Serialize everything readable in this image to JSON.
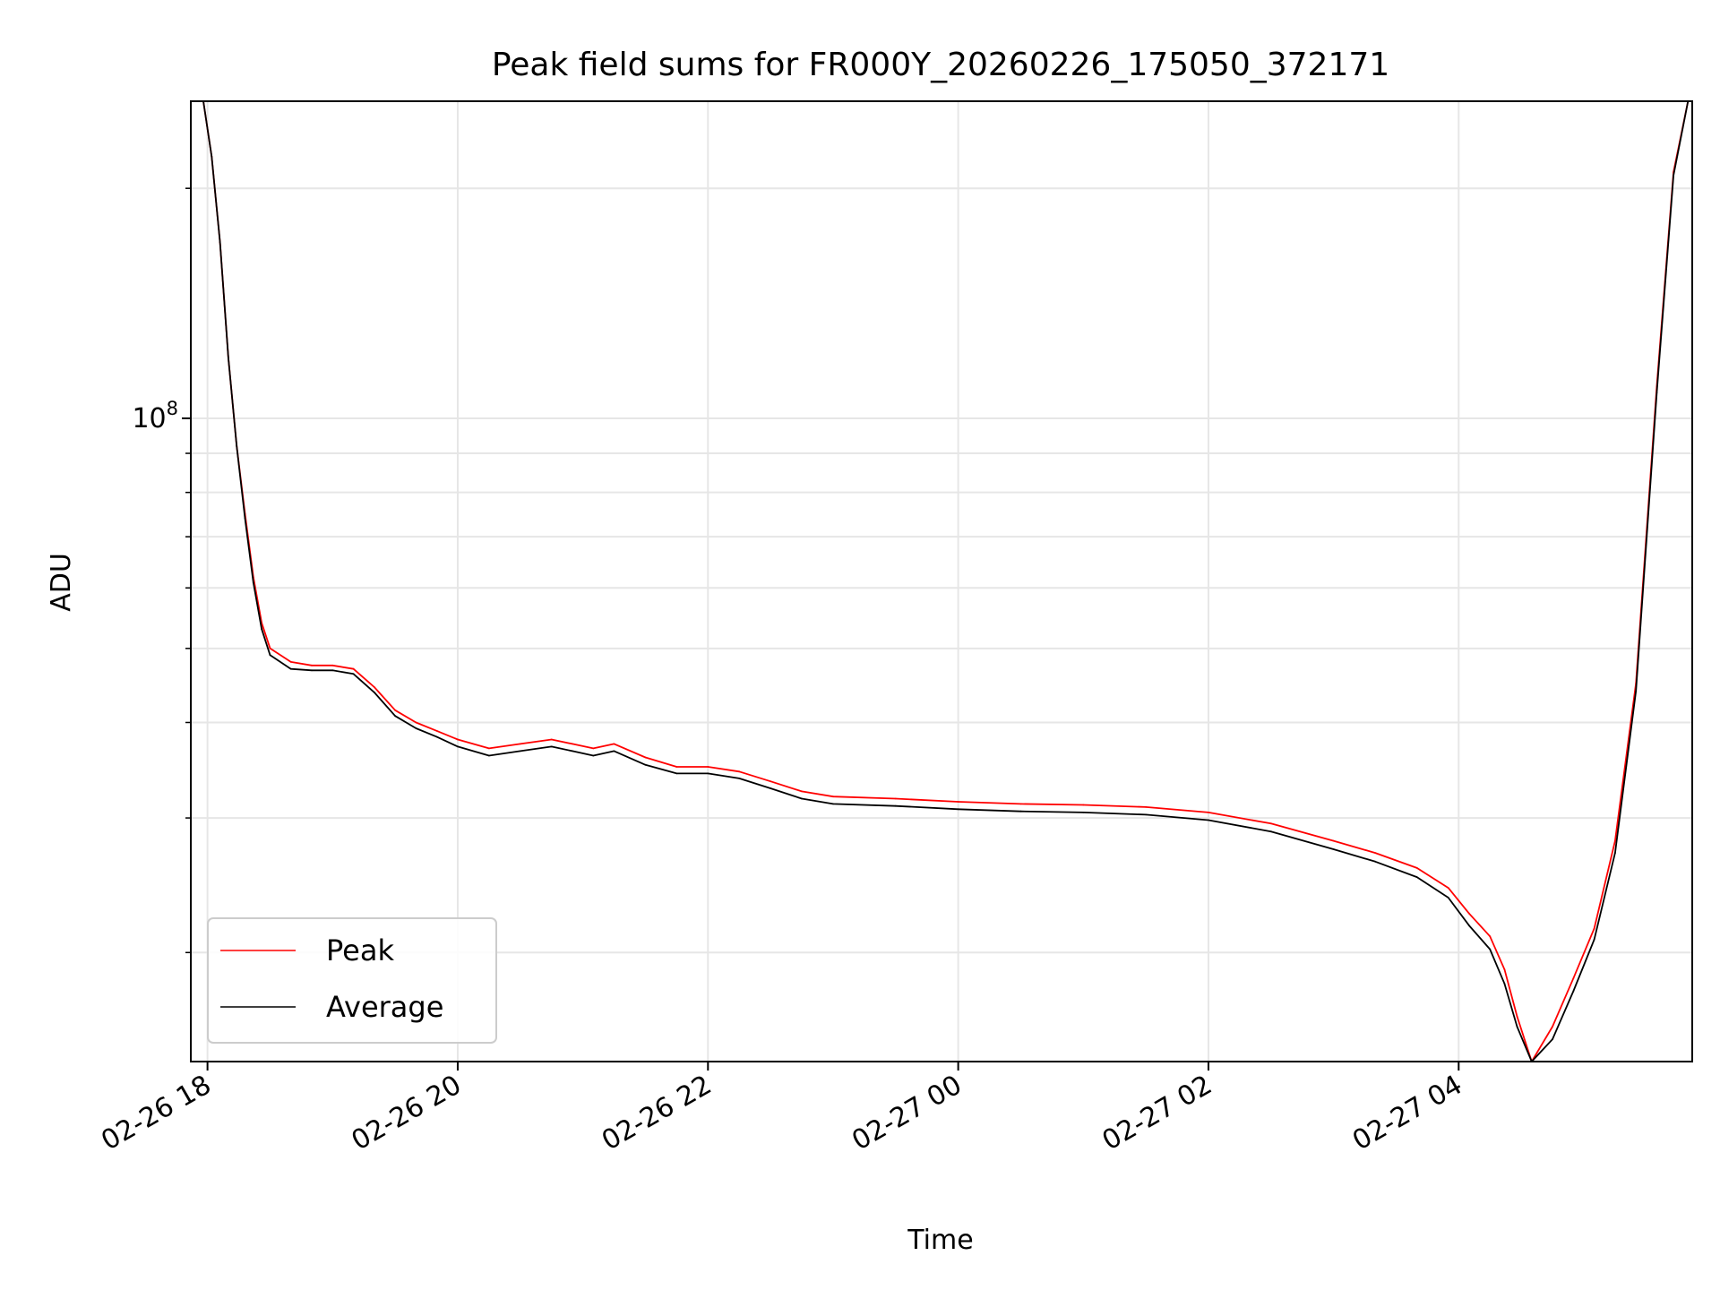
{
  "chart_data": {
    "type": "line",
    "title": "Peak field sums for FR000Y_20260226_175050_372171",
    "xlabel": "Time",
    "ylabel": "ADU",
    "x_ticks": [
      "02-26 18",
      "02-26 20",
      "02-26 22",
      "02-27 00",
      "02-27 02",
      "02-27 04"
    ],
    "y_tick_label": {
      "base": "10",
      "exponent": "8"
    },
    "yscale": "log",
    "ylim": [
      14400000,
      260000000
    ],
    "xlim": [
      "2026-02-26 17:52",
      "2026-02-27 05:52"
    ],
    "grid": true,
    "legend": {
      "position": "lower-left",
      "entries": [
        "Peak",
        "Average"
      ]
    },
    "colors": {
      "Peak": "#ff0000",
      "Average": "#000000"
    },
    "series": [
      {
        "name": "Peak",
        "x": [
          "2026-02-26 17:58",
          "2026-02-26 18:02",
          "2026-02-26 18:06",
          "2026-02-26 18:10",
          "2026-02-26 18:14",
          "2026-02-26 18:18",
          "2026-02-26 18:22",
          "2026-02-26 18:26",
          "2026-02-26 18:30",
          "2026-02-26 18:40",
          "2026-02-26 18:50",
          "2026-02-26 19:00",
          "2026-02-26 19:10",
          "2026-02-26 19:20",
          "2026-02-26 19:30",
          "2026-02-26 19:40",
          "2026-02-26 19:50",
          "2026-02-26 20:00",
          "2026-02-26 20:15",
          "2026-02-26 20:30",
          "2026-02-26 20:45",
          "2026-02-26 20:55",
          "2026-02-26 21:05",
          "2026-02-26 21:15",
          "2026-02-26 21:30",
          "2026-02-26 21:45",
          "2026-02-26 22:00",
          "2026-02-26 22:15",
          "2026-02-26 22:30",
          "2026-02-26 22:45",
          "2026-02-26 23:00",
          "2026-02-26 23:30",
          "2026-02-27 00:00",
          "2026-02-27 00:30",
          "2026-02-27 01:00",
          "2026-02-27 01:30",
          "2026-02-27 02:00",
          "2026-02-27 02:30",
          "2026-02-27 03:00",
          "2026-02-27 03:20",
          "2026-02-27 03:40",
          "2026-02-27 03:55",
          "2026-02-27 04:05",
          "2026-02-27 04:15",
          "2026-02-27 04:22",
          "2026-02-27 04:28",
          "2026-02-27 04:35",
          "2026-02-27 04:45",
          "2026-02-27 04:55",
          "2026-02-27 05:05",
          "2026-02-27 05:15",
          "2026-02-27 05:25",
          "2026-02-27 05:35",
          "2026-02-27 05:43",
          "2026-02-27 05:50"
        ],
        "y": [
          260000000,
          220000000,
          170000000,
          120000000,
          92000000,
          75000000,
          62000000,
          54000000,
          50000000,
          48000000,
          47500000,
          47500000,
          47000000,
          44500000,
          41500000,
          40000000,
          39000000,
          38000000,
          37000000,
          37500000,
          38000000,
          37500000,
          37000000,
          37500000,
          36000000,
          35000000,
          35000000,
          34500000,
          33500000,
          32500000,
          32000000,
          31800000,
          31500000,
          31300000,
          31200000,
          31000000,
          30500000,
          29500000,
          28000000,
          27000000,
          25800000,
          24300000,
          22500000,
          21000000,
          19000000,
          16500000,
          14400000,
          16000000,
          18500000,
          21500000,
          28000000,
          45000000,
          110000000,
          210000000,
          260000000
        ]
      },
      {
        "name": "Average",
        "x": [
          "2026-02-26 17:58",
          "2026-02-26 18:02",
          "2026-02-26 18:06",
          "2026-02-26 18:10",
          "2026-02-26 18:14",
          "2026-02-26 18:18",
          "2026-02-26 18:22",
          "2026-02-26 18:26",
          "2026-02-26 18:30",
          "2026-02-26 18:40",
          "2026-02-26 18:50",
          "2026-02-26 19:00",
          "2026-02-26 19:10",
          "2026-02-26 19:20",
          "2026-02-26 19:30",
          "2026-02-26 19:40",
          "2026-02-26 19:50",
          "2026-02-26 20:00",
          "2026-02-26 20:15",
          "2026-02-26 20:30",
          "2026-02-26 20:45",
          "2026-02-26 20:55",
          "2026-02-26 21:05",
          "2026-02-26 21:15",
          "2026-02-26 21:30",
          "2026-02-26 21:45",
          "2026-02-26 22:00",
          "2026-02-26 22:15",
          "2026-02-26 22:30",
          "2026-02-26 22:45",
          "2026-02-26 23:00",
          "2026-02-26 23:30",
          "2026-02-27 00:00",
          "2026-02-27 00:30",
          "2026-02-27 01:00",
          "2026-02-27 01:30",
          "2026-02-27 02:00",
          "2026-02-27 02:30",
          "2026-02-27 03:00",
          "2026-02-27 03:20",
          "2026-02-27 03:40",
          "2026-02-27 03:55",
          "2026-02-27 04:05",
          "2026-02-27 04:15",
          "2026-02-27 04:22",
          "2026-02-27 04:28",
          "2026-02-27 04:35",
          "2026-02-27 04:45",
          "2026-02-27 04:55",
          "2026-02-27 05:05",
          "2026-02-27 05:15",
          "2026-02-27 05:25",
          "2026-02-27 05:35",
          "2026-02-27 05:43",
          "2026-02-27 05:50"
        ],
        "y": [
          260000000,
          220000000,
          170000000,
          120000000,
          92000000,
          74000000,
          61000000,
          53000000,
          49000000,
          47000000,
          46800000,
          46800000,
          46300000,
          43800000,
          40800000,
          39300000,
          38300000,
          37200000,
          36200000,
          36700000,
          37200000,
          36700000,
          36200000,
          36700000,
          35200000,
          34300000,
          34300000,
          33800000,
          32800000,
          31800000,
          31300000,
          31100000,
          30800000,
          30600000,
          30500000,
          30300000,
          29800000,
          28800000,
          27300000,
          26300000,
          25100000,
          23600000,
          21700000,
          20200000,
          18200000,
          16000000,
          14400000,
          15400000,
          17800000,
          20800000,
          27000000,
          44000000,
          108000000,
          208000000,
          260000000
        ]
      }
    ]
  }
}
